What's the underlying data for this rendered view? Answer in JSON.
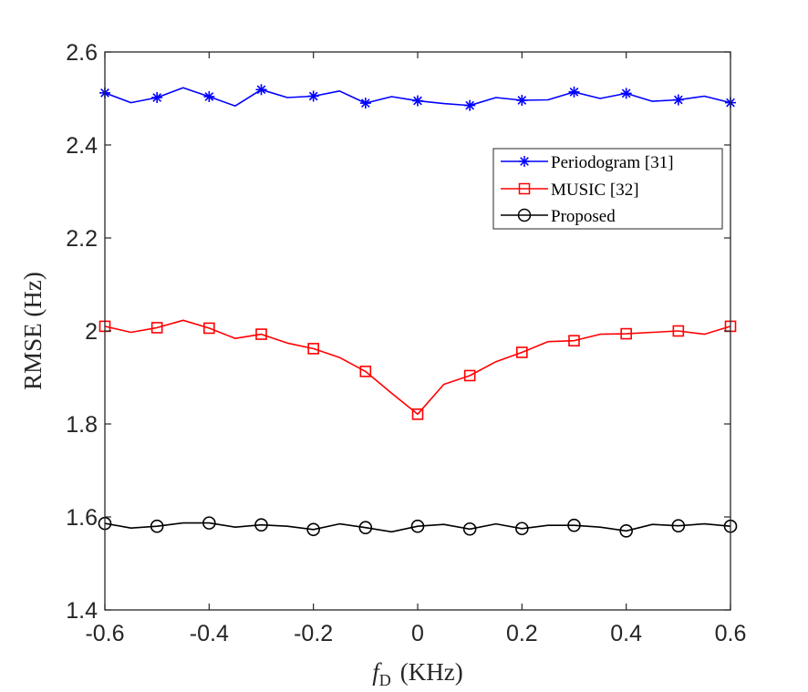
{
  "chart_data": {
    "type": "line",
    "title": "",
    "xlabel": {
      "var": "f",
      "sub": "D",
      "unit": "(KHz)"
    },
    "ylabel": "RMSE (Hz)",
    "xlim": [
      -0.6,
      0.6
    ],
    "ylim": [
      1.4,
      2.6
    ],
    "xticks": [
      -0.6,
      -0.4,
      -0.2,
      0,
      0.2,
      0.4,
      0.6
    ],
    "xtick_labels": [
      "-0.6",
      "-0.4",
      "-0.2",
      "0",
      "0.2",
      "0.4",
      "0.6"
    ],
    "yticks": [
      1.4,
      1.6,
      1.8,
      2.0,
      2.2,
      2.4,
      2.6
    ],
    "ytick_labels": [
      "1.4",
      "1.6",
      "1.8",
      "2",
      "2.2",
      "2.4",
      "2.6"
    ],
    "grid": false,
    "legend_position": "top-right",
    "x": [
      -0.6,
      -0.55,
      -0.5,
      -0.45,
      -0.4,
      -0.35,
      -0.3,
      -0.25,
      -0.2,
      -0.15,
      -0.1,
      -0.05,
      0,
      0.05,
      0.1,
      0.15,
      0.2,
      0.25,
      0.3,
      0.35,
      0.4,
      0.45,
      0.5,
      0.55,
      0.6
    ],
    "series": [
      {
        "name": "Periodogram [31]",
        "color": "#0000ff",
        "marker": "asterisk",
        "marker_every": 2,
        "values": [
          2.512,
          2.491,
          2.502,
          2.523,
          2.504,
          2.484,
          2.519,
          2.502,
          2.505,
          2.516,
          2.49,
          2.504,
          2.495,
          2.489,
          2.485,
          2.502,
          2.496,
          2.497,
          2.514,
          2.5,
          2.511,
          2.494,
          2.497,
          2.505,
          2.491
        ]
      },
      {
        "name": "MUSIC [32]",
        "color": "#ff0000",
        "marker": "square",
        "marker_every": 2,
        "values": [
          2.01,
          1.997,
          2.007,
          2.023,
          2.006,
          1.984,
          1.993,
          1.974,
          1.962,
          1.943,
          1.913,
          1.866,
          1.821,
          1.885,
          1.904,
          1.934,
          1.954,
          1.977,
          1.979,
          1.993,
          1.994,
          1.997,
          2.0,
          1.993,
          2.01
        ]
      },
      {
        "name": "Proposed",
        "color": "#000000",
        "marker": "circle",
        "marker_every": 2,
        "values": [
          1.586,
          1.576,
          1.58,
          1.587,
          1.587,
          1.578,
          1.583,
          1.58,
          1.573,
          1.585,
          1.577,
          1.568,
          1.58,
          1.584,
          1.574,
          1.585,
          1.575,
          1.582,
          1.582,
          1.578,
          1.57,
          1.584,
          1.581,
          1.585,
          1.58
        ]
      }
    ]
  }
}
